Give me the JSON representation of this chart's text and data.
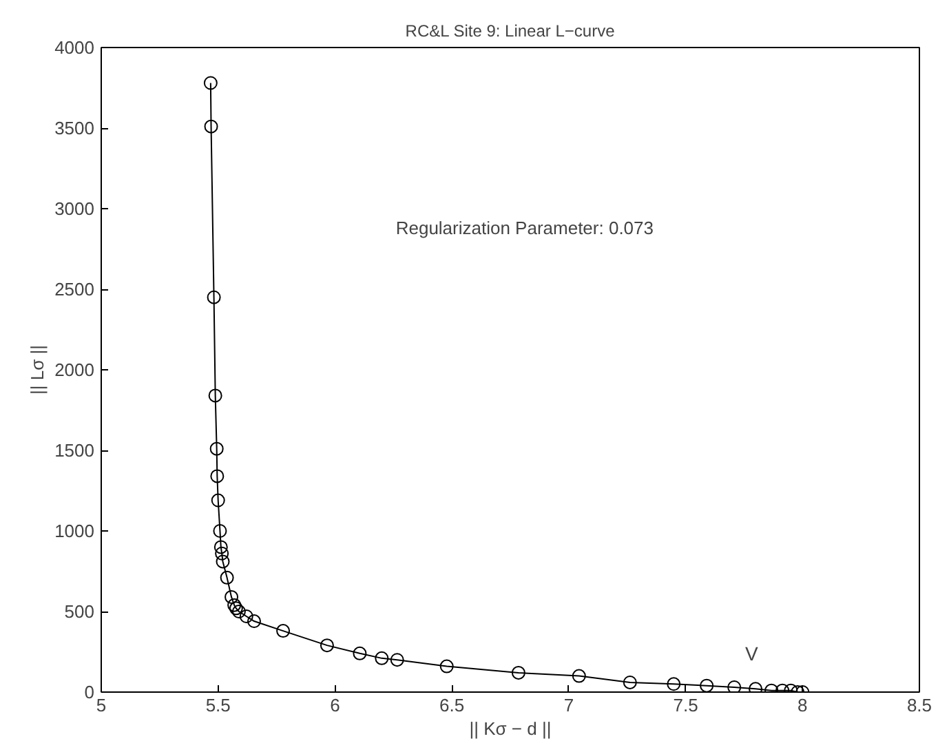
{
  "chart_data": {
    "type": "line",
    "title": "RC&L Site 9: Linear L−curve",
    "xlabel": "|| Kσ − d ||",
    "ylabel": "|| Lσ ||",
    "xlim": [
      5,
      8.5
    ],
    "xticks": [
      5,
      5.5,
      6,
      6.5,
      7,
      7.5,
      8,
      8.5
    ],
    "ylim": [
      0,
      4000
    ],
    "yticks": [
      0,
      500,
      1000,
      1500,
      2000,
      2500,
      3000,
      3500,
      4000
    ],
    "grid": false,
    "marker": "circle",
    "line_style": "solid",
    "annotations": [
      "Regularization Parameter: 0.073",
      "V"
    ],
    "series": [
      {
        "color": "#000000",
        "x": [
          5.468,
          5.47,
          5.482,
          5.488,
          5.494,
          5.496,
          5.5,
          5.508,
          5.512,
          5.516,
          5.52,
          5.538,
          5.557,
          5.569,
          5.577,
          5.589,
          5.621,
          5.654,
          5.778,
          5.966,
          6.106,
          6.2,
          6.266,
          6.478,
          6.785,
          7.044,
          7.262,
          7.449,
          7.59,
          7.708,
          7.799,
          7.867,
          7.914,
          7.95,
          7.979,
          8.0
        ],
        "values": [
          3780,
          3510,
          2450,
          1840,
          1510,
          1340,
          1190,
          1000,
          900,
          860,
          810,
          710,
          590,
          540,
          520,
          500,
          470,
          440,
          380,
          290,
          240,
          210,
          200,
          160,
          120,
          100,
          60,
          50,
          40,
          30,
          20,
          10,
          10,
          10,
          0,
          0
        ]
      }
    ]
  }
}
